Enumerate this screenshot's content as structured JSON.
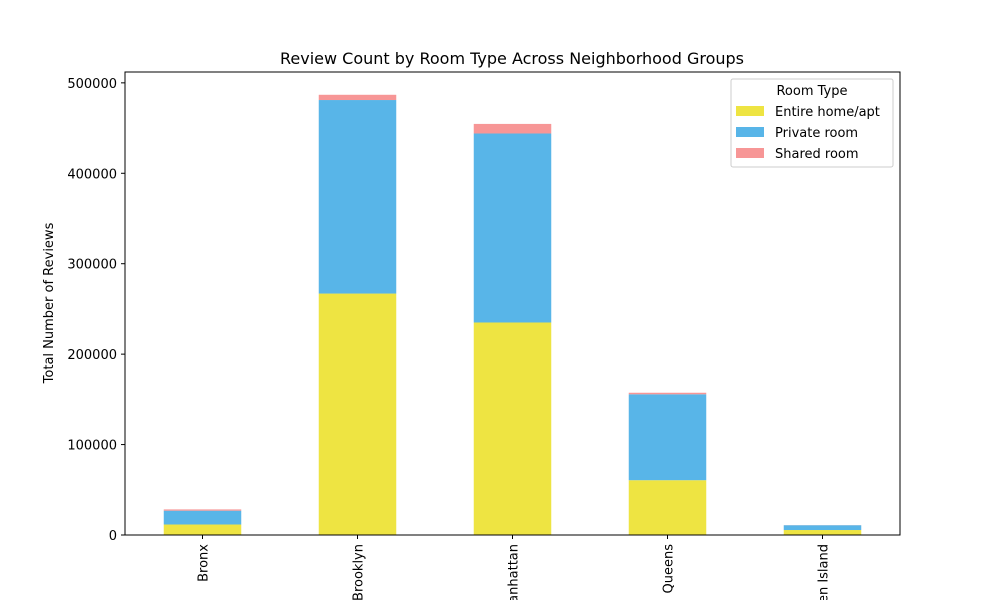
{
  "chart_data": {
    "type": "bar",
    "stacked": true,
    "title": "Review Count by Room Type Across Neighborhood Groups",
    "xlabel": "",
    "ylabel": "Total Number of Reviews",
    "ylim": [
      0,
      512000
    ],
    "yticks": [
      0,
      100000,
      200000,
      300000,
      400000,
      500000
    ],
    "categories": [
      "Bronx",
      "Brooklyn",
      "Manhattan",
      "Queens",
      "Staten Island"
    ],
    "series": [
      {
        "name": "Entire home/apt",
        "color": "#eee442",
        "values": [
          11600,
          267000,
          235000,
          60600,
          5500
        ]
      },
      {
        "name": "Private room",
        "color": "#58b5e8",
        "values": [
          15300,
          214000,
          209000,
          95000,
          5300
        ]
      },
      {
        "name": "Shared room",
        "color": "#f79696",
        "values": [
          1400,
          5800,
          10600,
          1700,
          100
        ]
      }
    ],
    "legend": {
      "title": "Room Type",
      "position": "top-right"
    },
    "grid": false
  }
}
